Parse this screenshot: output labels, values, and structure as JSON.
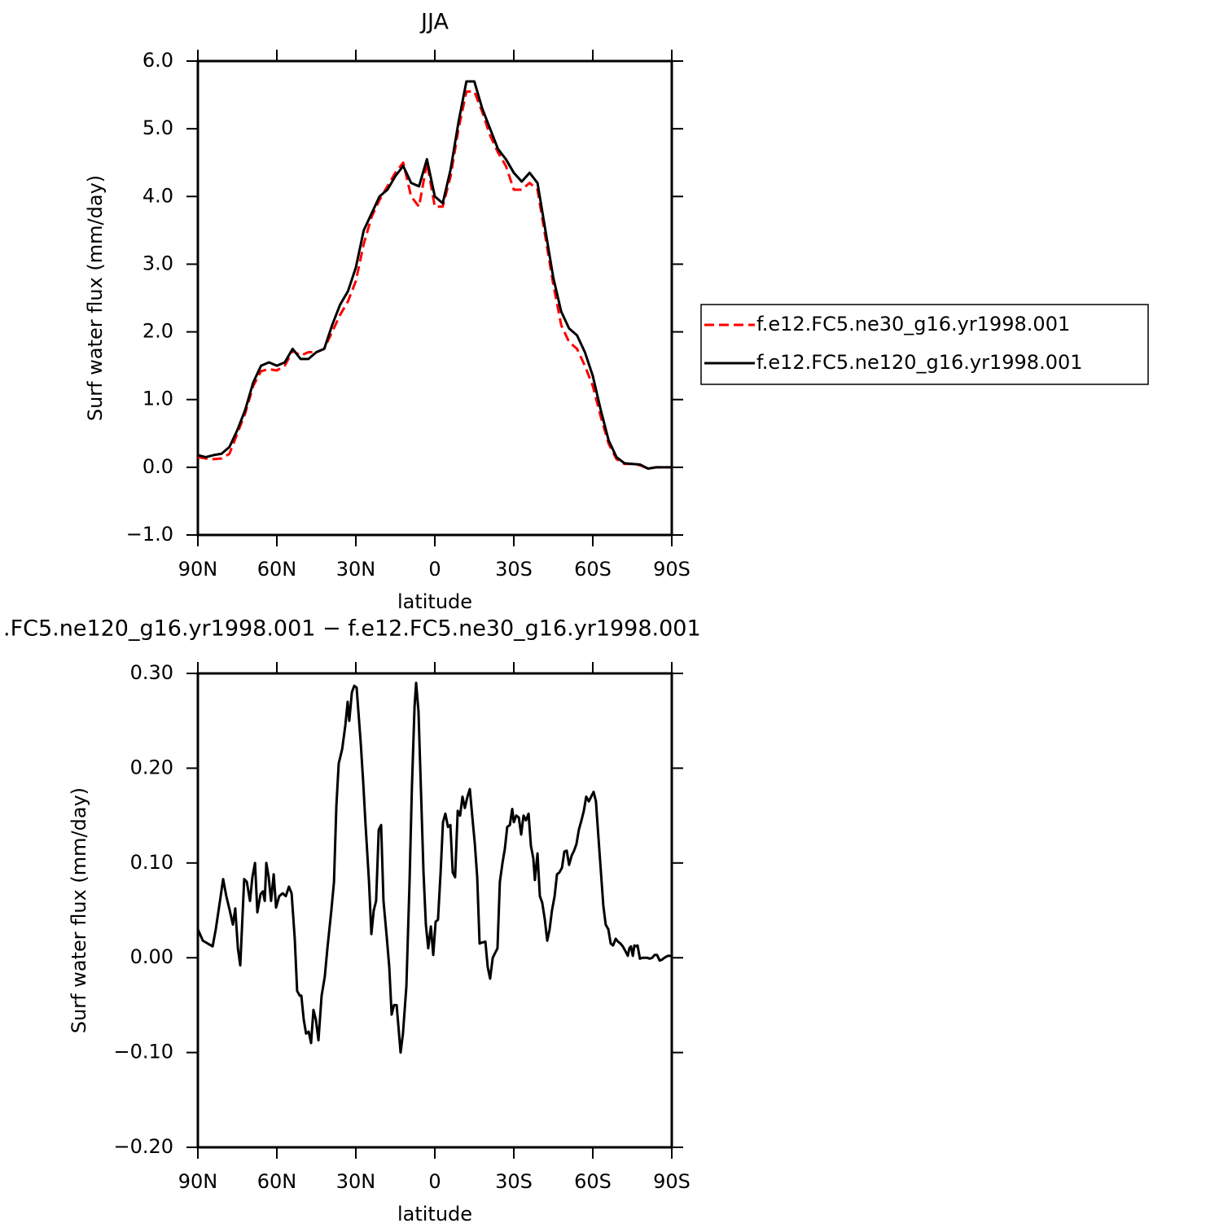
{
  "chart_data": [
    {
      "type": "line",
      "title": "JJA",
      "x_label": "latitude",
      "y_label": "Surf water flux (mm/day)",
      "x": [
        90,
        87,
        84,
        81,
        78,
        75,
        72,
        69,
        66,
        63,
        60,
        57,
        54,
        51,
        48,
        45,
        42,
        39,
        36,
        33,
        30,
        27,
        24,
        21,
        18,
        15,
        12,
        9,
        6,
        3,
        0,
        -3,
        -6,
        -9,
        -12,
        -15,
        -18,
        -21,
        -24,
        -27,
        -30,
        -33,
        -36,
        -39,
        -42,
        -45,
        -48,
        -51,
        -54,
        -57,
        -60,
        -63,
        -66,
        -69,
        -72,
        -75,
        -78,
        -81,
        -84,
        -87,
        -90
      ],
      "series": [
        {
          "name": "f.e12.FC5.ne30_g16.yr1998.001",
          "color": "#ff0000",
          "linestyle": "dashed",
          "values": [
            0.15,
            0.13,
            0.12,
            0.13,
            0.2,
            0.5,
            0.8,
            1.2,
            1.42,
            1.45,
            1.43,
            1.5,
            1.72,
            1.65,
            1.7,
            1.7,
            1.75,
            2.0,
            2.25,
            2.45,
            2.75,
            3.3,
            3.7,
            3.95,
            4.15,
            4.35,
            4.5,
            4.0,
            3.85,
            4.5,
            3.85,
            3.85,
            4.3,
            5.0,
            5.55,
            5.55,
            5.25,
            4.9,
            4.65,
            4.45,
            4.1,
            4.1,
            4.2,
            4.1,
            3.4,
            2.7,
            2.1,
            1.85,
            1.75,
            1.5,
            1.2,
            0.75,
            0.35,
            0.12,
            0.05,
            0.05,
            0.03,
            -0.02,
            0.0,
            0.0,
            0.0
          ]
        },
        {
          "name": "f.e12.FC5.ne120_g16.yr1998.001",
          "color": "#000000",
          "linestyle": "solid",
          "values": [
            0.18,
            0.15,
            0.18,
            0.2,
            0.3,
            0.55,
            0.85,
            1.25,
            1.5,
            1.55,
            1.5,
            1.55,
            1.75,
            1.6,
            1.6,
            1.7,
            1.75,
            2.1,
            2.4,
            2.6,
            2.95,
            3.5,
            3.75,
            4.0,
            4.1,
            4.3,
            4.45,
            4.2,
            4.15,
            4.55,
            4.0,
            3.9,
            4.4,
            5.1,
            5.7,
            5.7,
            5.3,
            5.0,
            4.7,
            4.55,
            4.35,
            4.22,
            4.35,
            4.2,
            3.5,
            2.8,
            2.3,
            2.05,
            1.95,
            1.7,
            1.35,
            0.85,
            0.4,
            0.15,
            0.06,
            0.05,
            0.04,
            -0.02,
            0.0,
            0.0,
            0.0
          ]
        }
      ],
      "xlim": [
        90,
        -90
      ],
      "xticks": [
        {
          "value": 90,
          "label": "90N"
        },
        {
          "value": 60,
          "label": "60N"
        },
        {
          "value": 30,
          "label": "30N"
        },
        0,
        {
          "value": -30,
          "label": "30S"
        },
        {
          "value": -60,
          "label": "60S"
        },
        {
          "value": -90,
          "label": "90S"
        }
      ],
      "ylim": [
        -1,
        6
      ],
      "yticks": [
        {
          "value": -1,
          "label": "−1.0"
        },
        {
          "value": 0,
          "label": "0.0"
        },
        {
          "value": 1,
          "label": "1.0"
        },
        {
          "value": 2,
          "label": "2.0"
        },
        {
          "value": 3,
          "label": "3.0"
        },
        {
          "value": 4,
          "label": "4.0"
        },
        {
          "value": 5,
          "label": "5.0"
        },
        {
          "value": 6,
          "label": "6.0"
        }
      ],
      "legend": "outside-right"
    },
    {
      "type": "line",
      "title": ".FC5.ne120_g16.yr1998.001 − f.e12.FC5.ne30_g16.yr1998.001",
      "x_label": "latitude",
      "y_label": "Surf water flux (mm/day)",
      "x": [
        90,
        88.1,
        84.4,
        83.2,
        81.6,
        80.4,
        79.2,
        77.9,
        76.7,
        75.8,
        74.8,
        73.9,
        72.4,
        71.4,
        70.2,
        69.3,
        68.3,
        67.4,
        66.2,
        65.3,
        64.6,
        64.0,
        63.1,
        62.2,
        61.2,
        60.3,
        59.1,
        57.8,
        56.6,
        55.4,
        54.4,
        53.2,
        52.3,
        51.3,
        50.7,
        49.8,
        48.9,
        47.9,
        47.0,
        46.1,
        45.2,
        44.2,
        43.0,
        41.8,
        40.8,
        39.3,
        38.3,
        37.4,
        36.5,
        35.2,
        34.0,
        33.1,
        32.5,
        31.5,
        30.6,
        29.7,
        28.1,
        27.2,
        26.3,
        25.0,
        24.1,
        23.2,
        22.3,
        21.3,
        20.4,
        19.5,
        18.2,
        17.3,
        16.4,
        15.5,
        14.5,
        13.6,
        13.0,
        12.1,
        10.8,
        9.6,
        8.7,
        7.7,
        7.1,
        6.2,
        5.3,
        4.3,
        3.4,
        2.5,
        1.5,
        0.6,
        -0.3,
        -1.2,
        -2.2,
        -3.1,
        -4.0,
        -5.0,
        -5.9,
        -6.8,
        -7.7,
        -8.7,
        -9.6,
        -10.5,
        -11.4,
        -12.4,
        -13.3,
        -14.2,
        -15.2,
        -16.1,
        -17.0,
        -17.9,
        -19.2,
        -20.1,
        -21.0,
        -22.0,
        -22.9,
        -23.8,
        -24.7,
        -25.7,
        -26.6,
        -27.5,
        -28.5,
        -29.4,
        -30.0,
        -30.9,
        -31.9,
        -32.8,
        -33.7,
        -34.6,
        -35.6,
        -36.5,
        -37.4,
        -38.0,
        -39.0,
        -39.9,
        -40.8,
        -41.8,
        -42.7,
        -43.6,
        -44.5,
        -45.5,
        -46.4,
        -47.3,
        -48.3,
        -49.2,
        -50.1,
        -51.0,
        -52.0,
        -52.9,
        -53.8,
        -54.7,
        -55.7,
        -56.6,
        -57.5,
        -58.5,
        -59.4,
        -60.3,
        -61.2,
        -62.2,
        -63.1,
        -64.0,
        -64.9,
        -65.9,
        -66.8,
        -67.7,
        -68.7,
        -69.6,
        -70.5,
        -71.4,
        -72.4,
        -73.3,
        -73.9,
        -74.5,
        -75.2,
        -75.8,
        -76.4,
        -77.0,
        -77.9,
        -78.9,
        -79.8,
        -80.7,
        -81.6,
        -82.6,
        -83.5,
        -84.4,
        -85.4,
        -86.3,
        -87.2,
        -88.5,
        -90
      ],
      "series": [
        {
          "color": "#000000",
          "linestyle": "solid",
          "values": [
            0.03,
            0.018,
            0.012,
            0.03,
            0.06,
            0.083,
            0.065,
            0.05,
            0.035,
            0.052,
            0.01,
            -0.008,
            0.083,
            0.08,
            0.06,
            0.085,
            0.1,
            0.048,
            0.067,
            0.07,
            0.06,
            0.1,
            0.085,
            0.06,
            0.088,
            0.053,
            0.065,
            0.068,
            0.065,
            0.075,
            0.068,
            0.02,
            -0.035,
            -0.04,
            -0.04,
            -0.065,
            -0.08,
            -0.078,
            -0.09,
            -0.055,
            -0.065,
            -0.087,
            -0.04,
            -0.02,
            0.01,
            0.05,
            0.08,
            0.16,
            0.205,
            0.22,
            0.245,
            0.27,
            0.25,
            0.28,
            0.287,
            0.285,
            0.225,
            0.185,
            0.14,
            0.08,
            0.025,
            0.05,
            0.06,
            0.135,
            0.14,
            0.06,
            0.02,
            -0.01,
            -0.06,
            -0.05,
            -0.05,
            -0.08,
            -0.1,
            -0.08,
            -0.03,
            0.08,
            0.18,
            0.265,
            0.29,
            0.26,
            0.18,
            0.09,
            0.035,
            0.01,
            0.033,
            0.003,
            0.038,
            0.04,
            0.09,
            0.143,
            0.152,
            0.138,
            0.14,
            0.09,
            0.085,
            0.155,
            0.15,
            0.17,
            0.158,
            0.17,
            0.178,
            0.15,
            0.12,
            0.085,
            0.015,
            0.016,
            0.017,
            -0.01,
            -0.022,
            0.0,
            0.005,
            0.01,
            0.08,
            0.1,
            0.115,
            0.138,
            0.14,
            0.157,
            0.143,
            0.15,
            0.148,
            0.13,
            0.15,
            0.145,
            0.152,
            0.118,
            0.105,
            0.082,
            0.11,
            0.065,
            0.058,
            0.04,
            0.018,
            0.03,
            0.05,
            0.065,
            0.088,
            0.09,
            0.095,
            0.112,
            0.113,
            0.098,
            0.108,
            0.113,
            0.12,
            0.135,
            0.145,
            0.155,
            0.17,
            0.165,
            0.17,
            0.175,
            0.165,
            0.125,
            0.09,
            0.055,
            0.035,
            0.03,
            0.015,
            0.013,
            0.02,
            0.017,
            0.015,
            0.012,
            0.007,
            0.002,
            0.01,
            0.012,
            0.002,
            0.013,
            0.012,
            0.013,
            -0.001,
            0.0,
            0.0,
            0.0,
            -0.001,
            0.0,
            0.003,
            0.003,
            -0.003,
            -0.002,
            0.0,
            0.002,
            0.002
          ]
        }
      ],
      "xlim": [
        90,
        -90
      ],
      "xticks": [
        {
          "value": 90,
          "label": "90N"
        },
        {
          "value": 60,
          "label": "60N"
        },
        {
          "value": 30,
          "label": "30N"
        },
        0,
        {
          "value": -30,
          "label": "30S"
        },
        {
          "value": -60,
          "label": "60S"
        },
        {
          "value": -90,
          "label": "90S"
        }
      ],
      "ylim": [
        -0.2,
        0.3
      ],
      "yticks": [
        {
          "value": -0.2,
          "label": "−0.20"
        },
        {
          "value": -0.1,
          "label": "−0.10"
        },
        {
          "value": 0,
          "label": "0.00"
        },
        {
          "value": 0.1,
          "label": "0.10"
        },
        {
          "value": 0.2,
          "label": "0.20"
        },
        {
          "value": 0.3,
          "label": "0.30"
        }
      ]
    }
  ]
}
